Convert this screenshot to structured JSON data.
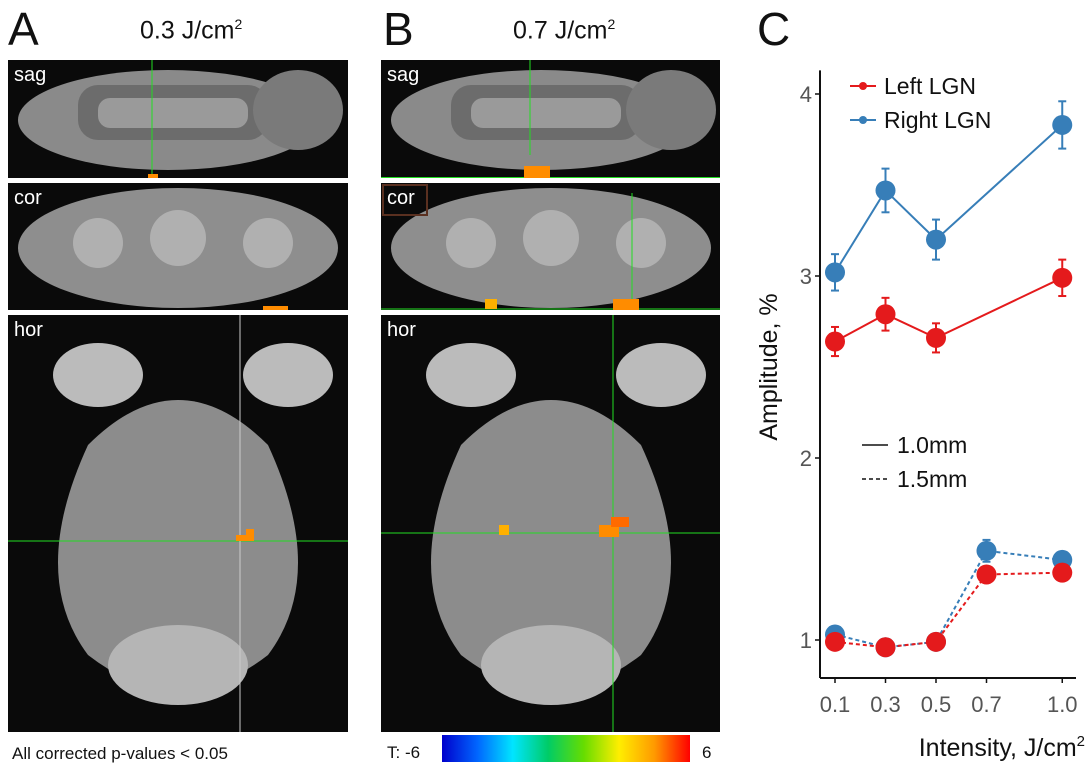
{
  "panels": [
    {
      "letter": "A",
      "title": "0.3 J/cm",
      "title_sup": "2",
      "views": [
        "sag",
        "cor",
        "hor"
      ]
    },
    {
      "letter": "B",
      "title": "0.7 J/cm",
      "title_sup": "2",
      "views": [
        "sag",
        "cor",
        "hor"
      ]
    }
  ],
  "footnote": "All corrected p-values < 0.05",
  "colorbar": {
    "label": "T: -6",
    "max_label": "6",
    "min": -6,
    "max": 6
  },
  "chart_letter": "C",
  "colors": {
    "left": "#e41a1c",
    "right": "#377eb8",
    "crosshair": "#22dd22",
    "activation": "#ff8c00"
  },
  "chart_data": {
    "type": "line",
    "xlabel": "Intensity, J/cm",
    "xlabel_sup": "2",
    "ylabel": "Amplitude, %",
    "x": [
      0.1,
      0.3,
      0.5,
      0.7,
      1.0
    ],
    "x_tick_labels": [
      "0.1",
      "0.3",
      "0.5",
      "0.7",
      "1.0"
    ],
    "y_ticks": [
      1,
      2,
      3,
      4
    ],
    "y_tick_labels": [
      "1",
      "2",
      "3",
      "4"
    ],
    "xlim": [
      0.05,
      1.05
    ],
    "ylim": [
      0.79,
      4.13
    ],
    "grid": false,
    "legend": {
      "placement": "top-left",
      "entries": [
        "Left LGN",
        "Right LGN"
      ]
    },
    "linetype_legend": {
      "placement": "center-left",
      "entries": [
        "1.0mm",
        "1.5mm"
      ]
    },
    "series": [
      {
        "name": "Left LGN",
        "linetype": "1.0mm",
        "color": "#e41a1c",
        "x": [
          0.1,
          0.3,
          0.5,
          1.0
        ],
        "values": [
          2.64,
          2.79,
          2.66,
          2.99
        ],
        "err": [
          0.08,
          0.09,
          0.08,
          0.1
        ]
      },
      {
        "name": "Right LGN",
        "linetype": "1.0mm",
        "color": "#377eb8",
        "x": [
          0.1,
          0.3,
          0.5,
          1.0
        ],
        "values": [
          3.02,
          3.47,
          3.2,
          3.83
        ],
        "err": [
          0.1,
          0.12,
          0.11,
          0.13
        ]
      },
      {
        "name": "Right LGN",
        "linetype": "1.5mm",
        "color": "#377eb8",
        "x": [
          0.1,
          0.3,
          0.5,
          0.7,
          1.0
        ],
        "values": [
          1.03,
          0.96,
          0.99,
          1.49,
          1.44
        ],
        "err": [
          0.02,
          0.02,
          0.02,
          0.06,
          0.02
        ]
      },
      {
        "name": "Left LGN",
        "linetype": "1.5mm",
        "color": "#e41a1c",
        "x": [
          0.1,
          0.3,
          0.5,
          0.7,
          1.0
        ],
        "values": [
          0.99,
          0.96,
          0.99,
          1.36,
          1.37
        ],
        "err": [
          0.02,
          0.02,
          0.02,
          0.04,
          0.02
        ]
      }
    ]
  }
}
